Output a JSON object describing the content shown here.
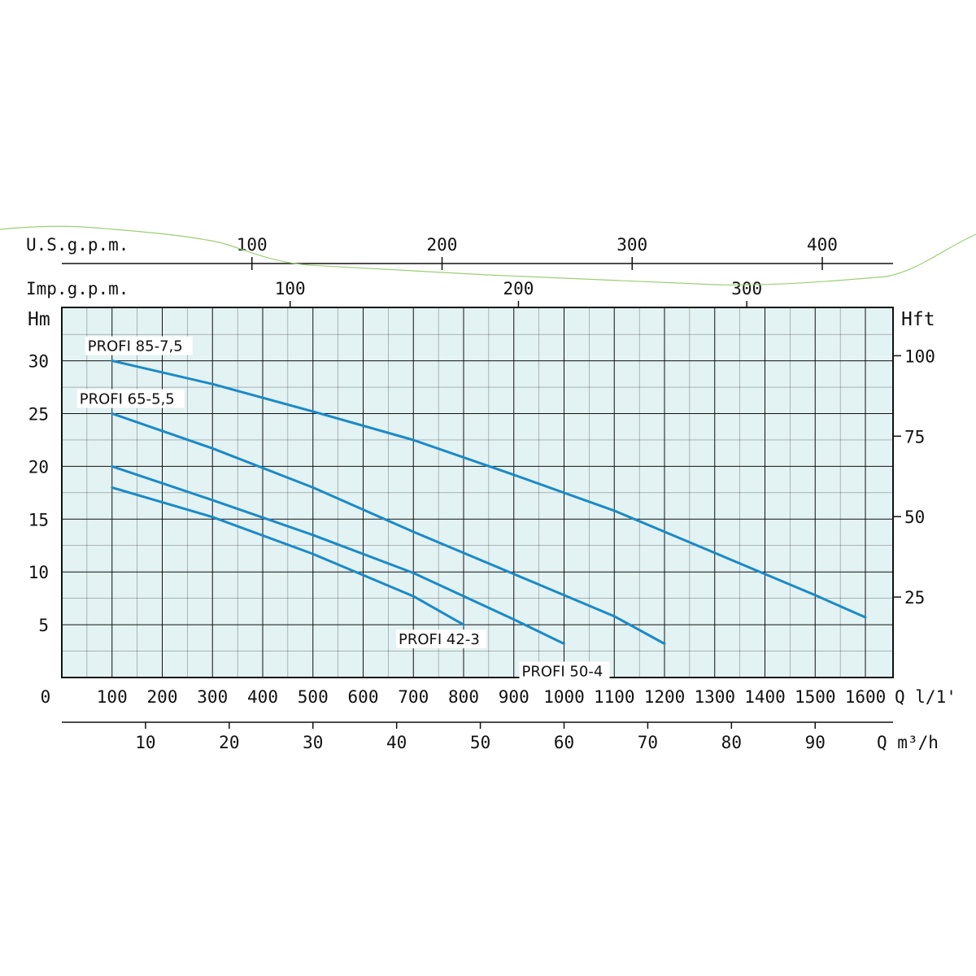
{
  "chart_data": {
    "type": "line",
    "title": "",
    "axes": {
      "left": {
        "label": "Hm",
        "ticks": [
          5,
          10,
          15,
          20,
          25,
          30
        ],
        "range": [
          0,
          35
        ]
      },
      "right": {
        "label": "Hft",
        "ticks": [
          25,
          50,
          75,
          100
        ]
      },
      "bottom_primary": {
        "label": "Q l/1'",
        "zero_label": "0",
        "ticks": [
          100,
          200,
          300,
          400,
          500,
          600,
          700,
          800,
          900,
          1000,
          1100,
          1200,
          1300,
          1400,
          1500,
          1600
        ],
        "range": [
          0,
          1650
        ]
      },
      "bottom_secondary": {
        "label": "Q m³/h",
        "ticks": [
          10,
          20,
          30,
          40,
          50,
          60,
          70,
          80,
          90
        ]
      },
      "top_usgpm": {
        "label": "U.S.g.p.m.",
        "ticks": [
          100,
          200,
          300,
          400
        ]
      },
      "top_impgpm": {
        "label": "Imp.g.p.m.",
        "ticks": [
          100,
          200,
          300
        ]
      }
    },
    "grid": true,
    "series": [
      {
        "name": "PROFI 85-7,5",
        "x": [
          100,
          300,
          500,
          700,
          900,
          1100,
          1300,
          1500,
          1600
        ],
        "y": [
          30,
          27.8,
          25.2,
          22.5,
          19.2,
          15.8,
          11.8,
          7.8,
          5.7
        ]
      },
      {
        "name": "PROFI 65-5,5",
        "x": [
          100,
          300,
          500,
          700,
          900,
          1100,
          1200
        ],
        "y": [
          25,
          21.7,
          18,
          13.8,
          9.8,
          5.8,
          3.2
        ]
      },
      {
        "name": "PROFI 50-4",
        "x": [
          100,
          300,
          500,
          700,
          900,
          1000
        ],
        "y": [
          20,
          16.8,
          13.5,
          9.9,
          5.5,
          3.2
        ]
      },
      {
        "name": "PROFI 42-3",
        "x": [
          100,
          300,
          500,
          700,
          800
        ],
        "y": [
          18,
          15.2,
          11.7,
          7.7,
          5
        ]
      }
    ],
    "line_color": "#1a8ac8",
    "plot_background": "#e3f2f3"
  }
}
